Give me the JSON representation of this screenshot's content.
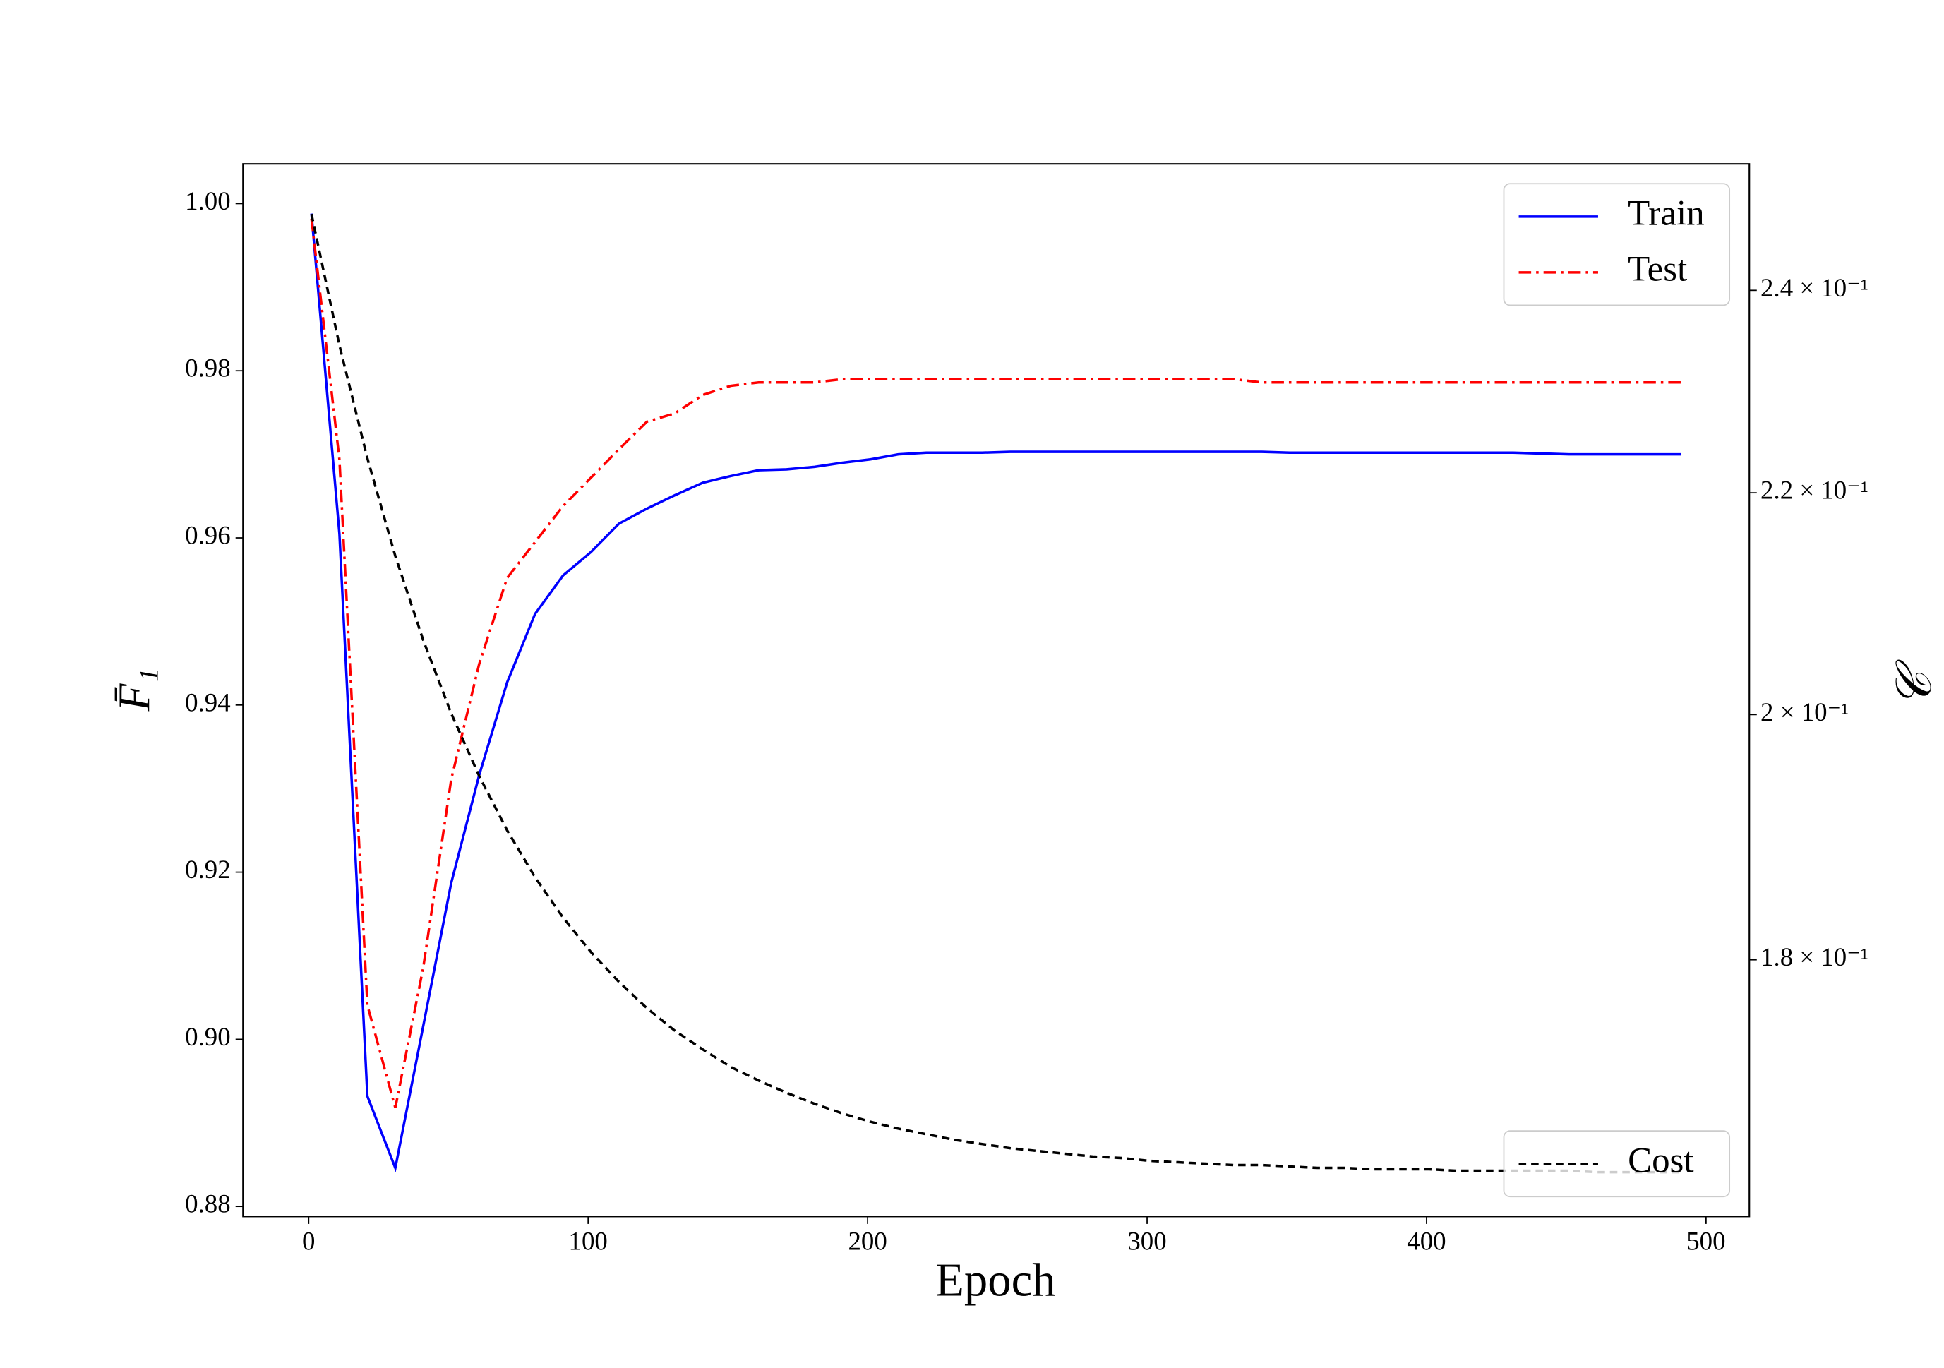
{
  "chart_data": {
    "type": "line",
    "xlabel": "Epoch",
    "ylabel": "F̄₁",
    "y2label": "𝒞",
    "x": [
      1,
      11,
      21,
      31,
      41,
      51,
      61,
      71,
      81,
      91,
      101,
      111,
      121,
      131,
      141,
      151,
      161,
      171,
      181,
      191,
      201,
      211,
      221,
      231,
      241,
      251,
      261,
      271,
      281,
      291,
      301,
      311,
      321,
      331,
      341,
      351,
      361,
      371,
      381,
      391,
      401,
      411,
      421,
      431,
      441,
      451,
      461,
      471,
      481,
      491
    ],
    "series": [
      {
        "name": "Train",
        "color": "#0000ff",
        "linestyle": "solid",
        "axis": "y",
        "values": [
          0.9988,
          0.9605,
          0.8932,
          0.8846,
          0.9016,
          0.9187,
          0.9316,
          0.9427,
          0.9509,
          0.9555,
          0.9583,
          0.9617,
          0.9635,
          0.9651,
          0.9666,
          0.9674,
          0.9681,
          0.9682,
          0.9685,
          0.969,
          0.9694,
          0.97,
          0.9702,
          0.9702,
          0.9702,
          0.9703,
          0.9703,
          0.9703,
          0.9703,
          0.9703,
          0.9703,
          0.9703,
          0.9703,
          0.9703,
          0.9703,
          0.9702,
          0.9702,
          0.9702,
          0.9702,
          0.9702,
          0.9702,
          0.9702,
          0.9702,
          0.9702,
          0.9701,
          0.97,
          0.97,
          0.97,
          0.97,
          0.97
        ]
      },
      {
        "name": "Test",
        "color": "#ff0000",
        "linestyle": "dashdot",
        "axis": "y",
        "values": [
          0.9982,
          0.9694,
          0.9041,
          0.8918,
          0.9086,
          0.9311,
          0.9449,
          0.9552,
          0.9595,
          0.9638,
          0.9672,
          0.9706,
          0.9739,
          0.9749,
          0.9771,
          0.9782,
          0.9786,
          0.9786,
          0.9786,
          0.979,
          0.979,
          0.979,
          0.979,
          0.979,
          0.979,
          0.979,
          0.979,
          0.979,
          0.979,
          0.979,
          0.979,
          0.979,
          0.979,
          0.979,
          0.9786,
          0.9786,
          0.9786,
          0.9786,
          0.9786,
          0.9786,
          0.9786,
          0.9786,
          0.9786,
          0.9786,
          0.9786,
          0.9786,
          0.9786,
          0.9786,
          0.9786,
          0.9786
        ]
      },
      {
        "name": "Cost",
        "color": "#000000",
        "linestyle": "dashed",
        "axis": "y2",
        "values": [
          0.248,
          0.2344,
          0.2233,
          0.2141,
          0.2065,
          0.2001,
          0.1948,
          0.1903,
          0.1865,
          0.1833,
          0.1806,
          0.1783,
          0.1763,
          0.1746,
          0.1732,
          0.1719,
          0.1709,
          0.17,
          0.1692,
          0.1685,
          0.1679,
          0.1674,
          0.167,
          0.1666,
          0.1663,
          0.166,
          0.1658,
          0.1656,
          0.1654,
          0.1653,
          0.1651,
          0.165,
          0.1649,
          0.1648,
          0.1648,
          0.1647,
          0.1646,
          0.1646,
          0.1645,
          0.1645,
          0.1645,
          0.1644,
          0.1644,
          0.1644,
          0.1644,
          0.1644,
          0.1643,
          0.1643,
          0.1643,
          0.1643
        ]
      }
    ],
    "xlim": [
      -23.5,
      515.5
    ],
    "xticks": [
      0,
      100,
      200,
      300,
      400,
      500
    ],
    "ylim": [
      0.8788,
      1.00475
    ],
    "yticks": [
      {
        "value": 0.88,
        "label": "0.88"
      },
      {
        "value": 0.9,
        "label": "0.90"
      },
      0.92,
      0.94,
      0.96,
      0.98,
      {
        "value": 1.0,
        "label": "1.00"
      }
    ],
    "y2lim": [
      0.1612,
      0.2534
    ],
    "y2scale": "log",
    "y2ticks": [
      {
        "value": 0.18,
        "label": "1.8 × 10⁻¹"
      },
      {
        "value": 0.2,
        "label": "2 × 10⁻¹"
      },
      {
        "value": 0.22,
        "label": "2.2 × 10⁻¹"
      },
      {
        "value": 0.24,
        "label": "2.4 × 10⁻¹"
      }
    ],
    "legend": "upper right",
    "y2_legend": "lower right"
  }
}
